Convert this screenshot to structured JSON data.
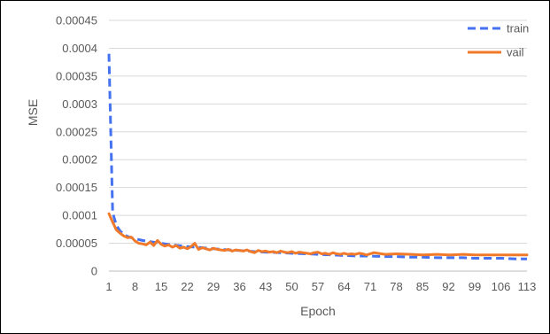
{
  "chart_data": {
    "type": "line",
    "xlabel": "Epoch",
    "ylabel": "MSE",
    "ylim": [
      0,
      0.00045
    ],
    "yticks": [
      "0",
      "0.00005",
      "0.0001",
      "0.00015",
      "0.0002",
      "0.00025",
      "0.0003",
      "0.00035",
      "0.0004",
      "0.00045"
    ],
    "xticks": [
      "1",
      "8",
      "15",
      "22",
      "29",
      "36",
      "43",
      "50",
      "57",
      "64",
      "71",
      "78",
      "85",
      "92",
      "99",
      "106",
      "113"
    ],
    "xlim": [
      1,
      113
    ],
    "grid": true,
    "legend_position": "top-right",
    "series": [
      {
        "name": "train",
        "color": "#4472f0",
        "style": "dashed",
        "x": [
          1,
          2,
          3,
          4,
          5,
          6,
          8,
          10,
          12,
          15,
          18,
          22,
          26,
          29,
          33,
          36,
          40,
          43,
          47,
          50,
          54,
          57,
          61,
          64,
          68,
          71,
          75,
          78,
          82,
          85,
          89,
          92,
          96,
          99,
          103,
          106,
          110,
          113
        ],
        "y": [
          0.00039,
          0.000105,
          8.2e-05,
          7.2e-05,
          6.6e-05,
          6.2e-05,
          5.8e-05,
          5.5e-05,
          5.3e-05,
          5e-05,
          4.7e-05,
          4.4e-05,
          4.2e-05,
          4e-05,
          3.8e-05,
          3.7e-05,
          3.5e-05,
          3.4e-05,
          3.3e-05,
          3.2e-05,
          3.1e-05,
          3e-05,
          2.9e-05,
          2.8e-05,
          2.7e-05,
          2.7e-05,
          2.6e-05,
          2.6e-05,
          2.5e-05,
          2.5e-05,
          2.4e-05,
          2.4e-05,
          2.4e-05,
          2.3e-05,
          2.3e-05,
          2.3e-05,
          2.2e-05,
          2.2e-05
        ]
      },
      {
        "name": "vail",
        "color": "#f07a2a",
        "style": "solid",
        "x": [
          1,
          2,
          3,
          4,
          5,
          6,
          7,
          8,
          9,
          10,
          11,
          12,
          13,
          14,
          15,
          16,
          17,
          18,
          19,
          20,
          21,
          22,
          23,
          24,
          25,
          26,
          27,
          28,
          29,
          30,
          31,
          32,
          33,
          34,
          35,
          36,
          37,
          38,
          39,
          40,
          41,
          42,
          43,
          44,
          45,
          46,
          47,
          48,
          49,
          50,
          51,
          52,
          53,
          54,
          55,
          56,
          57,
          58,
          59,
          60,
          61,
          62,
          63,
          64,
          65,
          66,
          67,
          68,
          69,
          70,
          72,
          75,
          78,
          82,
          85,
          89,
          92,
          96,
          99,
          103,
          106,
          110,
          113
        ],
        "y": [
          0.000103,
          8.8e-05,
          7.4e-05,
          6.8e-05,
          6.3e-05,
          6e-05,
          6.1e-05,
          5.4e-05,
          5e-05,
          4.9e-05,
          4.7e-05,
          5.2e-05,
          4.6e-05,
          5.5e-05,
          4.8e-05,
          4.5e-05,
          4.7e-05,
          4.3e-05,
          4.6e-05,
          4.1e-05,
          4.3e-05,
          4e-05,
          4.4e-05,
          5e-05,
          3.9e-05,
          4.2e-05,
          4e-05,
          3.8e-05,
          4.1e-05,
          3.9e-05,
          3.8e-05,
          3.7e-05,
          3.9e-05,
          3.6e-05,
          3.8e-05,
          3.7e-05,
          3.6e-05,
          3.8e-05,
          3.5e-05,
          3.3e-05,
          3.7e-05,
          3.5e-05,
          3.6e-05,
          3.4e-05,
          3.5e-05,
          3.3e-05,
          3.6e-05,
          3.4e-05,
          3.3e-05,
          3.5e-05,
          3.2e-05,
          3.4e-05,
          3.3e-05,
          3.2e-05,
          3.1e-05,
          3.3e-05,
          3.4e-05,
          3.1e-05,
          3.2e-05,
          3e-05,
          3.3e-05,
          3.1e-05,
          3e-05,
          3.2e-05,
          3e-05,
          3.1e-05,
          3e-05,
          3.2e-05,
          3.1e-05,
          2.9e-05,
          3.3e-05,
          3e-05,
          3.1e-05,
          3e-05,
          2.9e-05,
          3e-05,
          2.9e-05,
          3e-05,
          2.9e-05,
          2.9e-05,
          2.9e-05,
          2.9e-05,
          2.9e-05
        ]
      }
    ]
  }
}
